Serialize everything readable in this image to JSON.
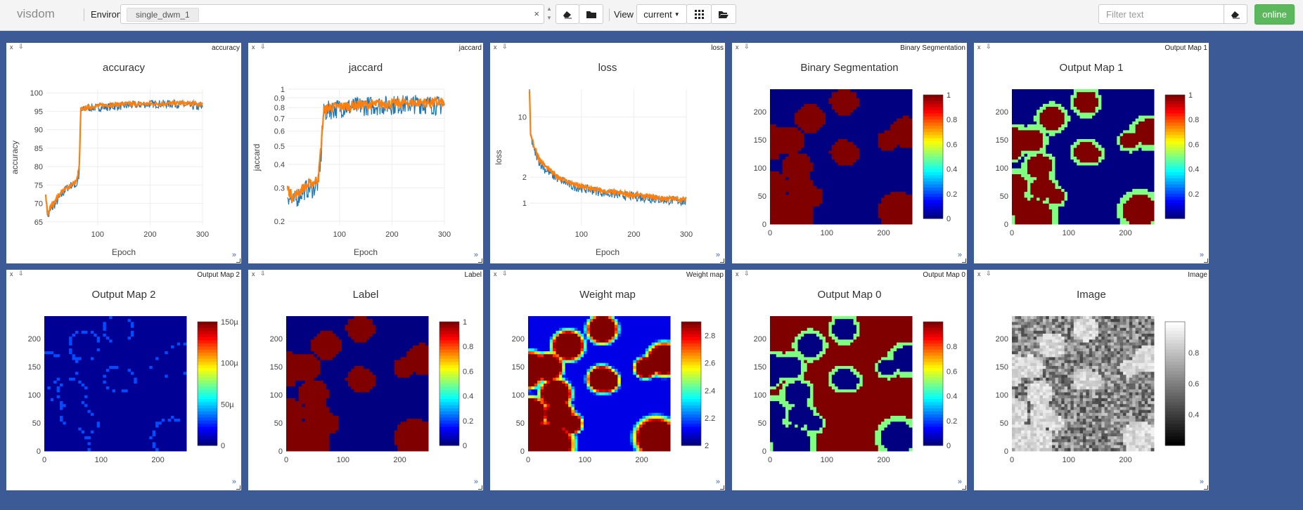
{
  "app": {
    "name": "visdom",
    "environment_label": "Environment",
    "environment_value": "single_dwm_1",
    "view_label": "View",
    "view_value": "current",
    "filter_placeholder": "Filter text",
    "status": "online"
  },
  "icons": [
    "clear-icon",
    "folder-icon",
    "grid-icon",
    "folder-open-icon",
    "eraser-icon"
  ],
  "colors": {
    "navy": "#3c5a96",
    "blue_series": "#1f77b4",
    "orange_series": "#ff7f0e",
    "online": "#5cb85c"
  },
  "panes": [
    {
      "id": "accuracy",
      "pane_name": "accuracy",
      "title": "accuracy",
      "type": "line",
      "xlabel": "Epoch",
      "ylabel": "accuracy"
    },
    {
      "id": "jaccard",
      "pane_name": "jaccard",
      "title": "jaccard",
      "type": "line",
      "xlabel": "Epoch",
      "ylabel": "jaccard"
    },
    {
      "id": "loss",
      "pane_name": "loss",
      "title": "loss",
      "type": "line",
      "xlabel": "Epoch",
      "ylabel": "loss"
    },
    {
      "id": "binseg",
      "pane_name": "Binary Segmentation",
      "title": "Binary Segmentation",
      "type": "heatmap",
      "colorscale": "jet"
    },
    {
      "id": "outmap1",
      "pane_name": "Output Map 1",
      "title": "Output Map 1",
      "type": "heatmap",
      "colorscale": "jet"
    },
    {
      "id": "outmap2",
      "pane_name": "Output Map 2",
      "title": "Output Map 2",
      "type": "heatmap",
      "colorscale": "jet"
    },
    {
      "id": "label",
      "pane_name": "Label",
      "title": "Label",
      "type": "heatmap",
      "colorscale": "jet"
    },
    {
      "id": "weightmap",
      "pane_name": "Weight map",
      "title": "Weight map",
      "type": "heatmap",
      "colorscale": "jet"
    },
    {
      "id": "outmap0",
      "pane_name": "Output Map 0",
      "title": "Output Map 0",
      "type": "heatmap",
      "colorscale": "jet"
    },
    {
      "id": "image",
      "pane_name": "Image",
      "title": "Image",
      "type": "heatmap",
      "colorscale": "gray"
    }
  ],
  "pane_controls": {
    "close": "x",
    "download": "⇩",
    "expand": "»"
  },
  "chart_data": [
    {
      "type": "line",
      "title": "accuracy",
      "xlabel": "Epoch",
      "ylabel": "accuracy",
      "xticks": [
        100,
        200,
        300
      ],
      "yticks": [
        65,
        70,
        75,
        80,
        85,
        90,
        95,
        100
      ],
      "xlim": [
        1,
        300
      ],
      "ylim": [
        64,
        101
      ],
      "series": [
        {
          "color": "#1f77b4",
          "points": [
            [
              1,
              72
            ],
            [
              5,
              66
            ],
            [
              10,
              68
            ],
            [
              20,
              70
            ],
            [
              30,
              72
            ],
            [
              40,
              74
            ],
            [
              50,
              75
            ],
            [
              60,
              75
            ],
            [
              65,
              78
            ],
            [
              68,
              95
            ],
            [
              80,
              96
            ],
            [
              100,
              96
            ],
            [
              150,
              96.5
            ],
            [
              200,
              97
            ],
            [
              250,
              97
            ],
            [
              300,
              96
            ]
          ]
        },
        {
          "color": "#ff7f0e",
          "points": [
            [
              1,
              72
            ],
            [
              5,
              67
            ],
            [
              10,
              69
            ],
            [
              20,
              71
            ],
            [
              30,
              73
            ],
            [
              40,
              74
            ],
            [
              50,
              75
            ],
            [
              60,
              76
            ],
            [
              65,
              80
            ],
            [
              68,
              95.5
            ],
            [
              80,
              96
            ],
            [
              100,
              96.5
            ],
            [
              150,
              97
            ],
            [
              200,
              97
            ],
            [
              250,
              97.2
            ],
            [
              300,
              97
            ]
          ]
        }
      ]
    },
    {
      "type": "line",
      "title": "jaccard",
      "xlabel": "Epoch",
      "ylabel": "jaccard",
      "log_y": true,
      "xticks": [
        100,
        200,
        300
      ],
      "yticks": [
        0.2,
        0.3,
        0.4,
        0.5,
        0.6,
        0.7,
        0.8,
        0.9,
        1
      ],
      "xlim": [
        1,
        300
      ],
      "ylim": [
        0.19,
        1.0
      ],
      "series": [
        {
          "color": "#1f77b4",
          "points": [
            [
              1,
              0.28
            ],
            [
              10,
              0.25
            ],
            [
              20,
              0.27
            ],
            [
              30,
              0.29
            ],
            [
              40,
              0.3
            ],
            [
              50,
              0.3
            ],
            [
              60,
              0.32
            ],
            [
              65,
              0.45
            ],
            [
              70,
              0.75
            ],
            [
              80,
              0.78
            ],
            [
              100,
              0.8
            ],
            [
              150,
              0.82
            ],
            [
              200,
              0.83
            ],
            [
              250,
              0.84
            ],
            [
              300,
              0.82
            ]
          ]
        },
        {
          "color": "#ff7f0e",
          "points": [
            [
              1,
              0.3
            ],
            [
              10,
              0.27
            ],
            [
              20,
              0.28
            ],
            [
              30,
              0.3
            ],
            [
              40,
              0.31
            ],
            [
              50,
              0.32
            ],
            [
              60,
              0.34
            ],
            [
              65,
              0.5
            ],
            [
              70,
              0.77
            ],
            [
              80,
              0.8
            ],
            [
              100,
              0.81
            ],
            [
              150,
              0.83
            ],
            [
              200,
              0.84
            ],
            [
              250,
              0.85
            ],
            [
              300,
              0.85
            ]
          ]
        }
      ]
    },
    {
      "type": "line",
      "title": "loss",
      "xlabel": "Epoch",
      "ylabel": "loss",
      "log_y": true,
      "xticks": [
        100,
        200,
        300
      ],
      "yticks": [
        1,
        2,
        10
      ],
      "xlim": [
        1,
        300
      ],
      "ylim": [
        0.55,
        21
      ],
      "series": [
        {
          "color": "#1f77b4",
          "points": [
            [
              1,
              20
            ],
            [
              3,
              6
            ],
            [
              10,
              4
            ],
            [
              20,
              3
            ],
            [
              30,
              2.5
            ],
            [
              50,
              2
            ],
            [
              80,
              1.6
            ],
            [
              100,
              1.5
            ],
            [
              150,
              1.3
            ],
            [
              200,
              1.2
            ],
            [
              250,
              1.1
            ],
            [
              300,
              1.05
            ]
          ]
        },
        {
          "color": "#ff7f0e",
          "points": [
            [
              1,
              19
            ],
            [
              3,
              6.5
            ],
            [
              10,
              4.5
            ],
            [
              20,
              3.2
            ],
            [
              30,
              2.7
            ],
            [
              50,
              2.1
            ],
            [
              80,
              1.7
            ],
            [
              100,
              1.55
            ],
            [
              150,
              1.35
            ],
            [
              200,
              1.25
            ],
            [
              250,
              1.15
            ],
            [
              300,
              1.1
            ]
          ]
        }
      ]
    },
    {
      "type": "heatmap",
      "title": "Binary Segmentation",
      "xticks": [
        0,
        100,
        200
      ],
      "yticks": [
        0,
        50,
        100,
        150,
        200
      ],
      "xlim": [
        0,
        250
      ],
      "ylim": [
        0,
        240
      ],
      "zrange": [
        0,
        1
      ],
      "cbar_ticks": [
        0,
        0.2,
        0.4,
        0.6,
        0.8,
        1
      ],
      "colorscale": "jet",
      "pattern": "binary"
    },
    {
      "type": "heatmap",
      "title": "Output Map 1",
      "xticks": [
        0,
        100,
        200
      ],
      "yticks": [
        0,
        50,
        100,
        150,
        200
      ],
      "xlim": [
        0,
        250
      ],
      "ylim": [
        0,
        240
      ],
      "zrange": [
        0,
        1
      ],
      "cbar_ticks": [
        0.2,
        0.4,
        0.6,
        0.8,
        1
      ],
      "colorscale": "jet",
      "pattern": "binary-soft"
    },
    {
      "type": "heatmap",
      "title": "Output Map 2",
      "xticks": [
        0,
        100,
        200
      ],
      "yticks": [
        0,
        50,
        100,
        150,
        200
      ],
      "xlim": [
        0,
        250
      ],
      "ylim": [
        0,
        240
      ],
      "zrange": [
        0,
        0.00015
      ],
      "cbar_ticks": [
        "0",
        "50µ",
        "100µ",
        "150µ"
      ],
      "colorscale": "jet",
      "pattern": "edges"
    },
    {
      "type": "heatmap",
      "title": "Label",
      "xticks": [
        0,
        100,
        200
      ],
      "yticks": [
        0,
        50,
        100,
        150,
        200
      ],
      "xlim": [
        0,
        250
      ],
      "ylim": [
        0,
        240
      ],
      "zrange": [
        0,
        1
      ],
      "cbar_ticks": [
        0,
        0.2,
        0.4,
        0.6,
        0.8,
        1
      ],
      "colorscale": "jet",
      "pattern": "binary"
    },
    {
      "type": "heatmap",
      "title": "Weight map",
      "xticks": [
        0,
        100,
        200
      ],
      "yticks": [
        0,
        50,
        100,
        150,
        200
      ],
      "xlim": [
        0,
        250
      ],
      "ylim": [
        0,
        240
      ],
      "zrange": [
        2,
        2.9
      ],
      "cbar_ticks": [
        2,
        2.2,
        2.4,
        2.6,
        2.8
      ],
      "colorscale": "jet",
      "pattern": "weight"
    },
    {
      "type": "heatmap",
      "title": "Output Map 0",
      "xticks": [
        0,
        100,
        200
      ],
      "yticks": [
        0,
        50,
        100,
        150,
        200
      ],
      "xlim": [
        0,
        250
      ],
      "ylim": [
        0,
        240
      ],
      "zrange": [
        0,
        1
      ],
      "cbar_ticks": [
        0,
        0.2,
        0.4,
        0.6,
        0.8
      ],
      "colorscale": "jet",
      "pattern": "inverse"
    },
    {
      "type": "heatmap",
      "title": "Image",
      "xticks": [
        0,
        100,
        200
      ],
      "yticks": [
        0,
        50,
        100,
        150,
        200
      ],
      "xlim": [
        0,
        250
      ],
      "ylim": [
        0,
        240
      ],
      "zrange": [
        0.2,
        1
      ],
      "cbar_ticks": [
        0.4,
        0.6,
        0.8
      ],
      "colorscale": "gray",
      "pattern": "image"
    }
  ]
}
